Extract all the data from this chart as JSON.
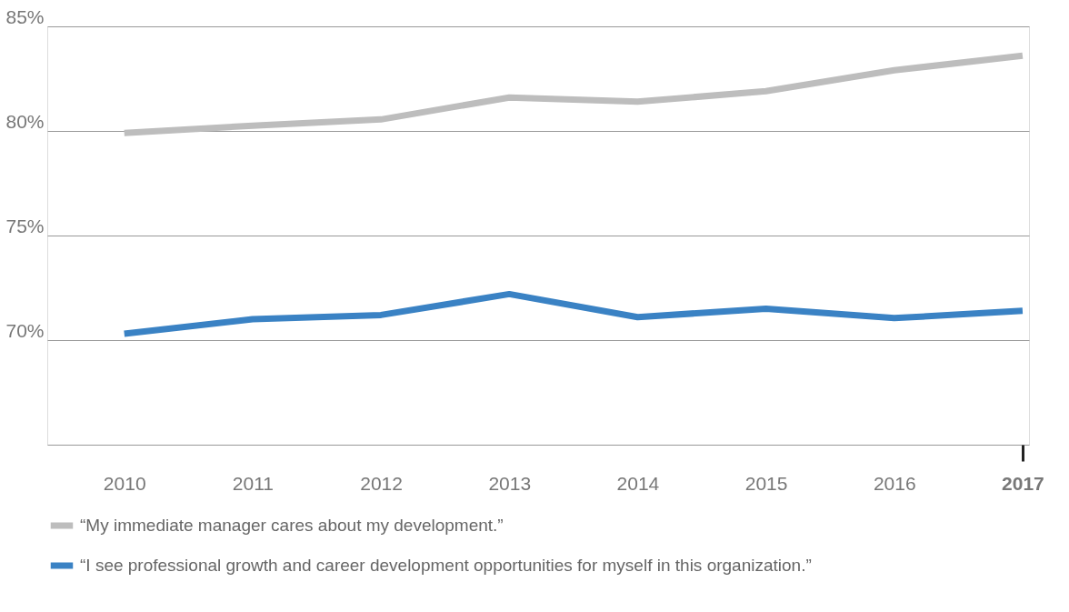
{
  "chart_data": {
    "type": "line",
    "categories": [
      "2010",
      "2011",
      "2012",
      "2013",
      "2014",
      "2015",
      "2016",
      "2017"
    ],
    "series": [
      {
        "name": "“My immediate manager cares about my development.”",
        "color": "#bdbdbd",
        "values": [
          79.9,
          80.25,
          80.55,
          81.6,
          81.4,
          81.9,
          82.9,
          83.6
        ]
      },
      {
        "name": "“I see professional growth and career development opportunities for myself in this organization.”",
        "color": "#3a82c4",
        "values": [
          70.3,
          71.0,
          71.2,
          72.2,
          71.1,
          71.5,
          71.05,
          71.4
        ]
      }
    ],
    "ylim": [
      65,
      85
    ],
    "yticks": [
      {
        "value": 65,
        "label": null
      },
      {
        "value": 70,
        "label": "70%"
      },
      {
        "value": 75,
        "label": "75%"
      },
      {
        "value": 80,
        "label": "80%"
      },
      {
        "value": 85,
        "label": "85%"
      }
    ],
    "grid": "y",
    "legend": "bottom",
    "marker": "none",
    "line_style": "solid"
  }
}
